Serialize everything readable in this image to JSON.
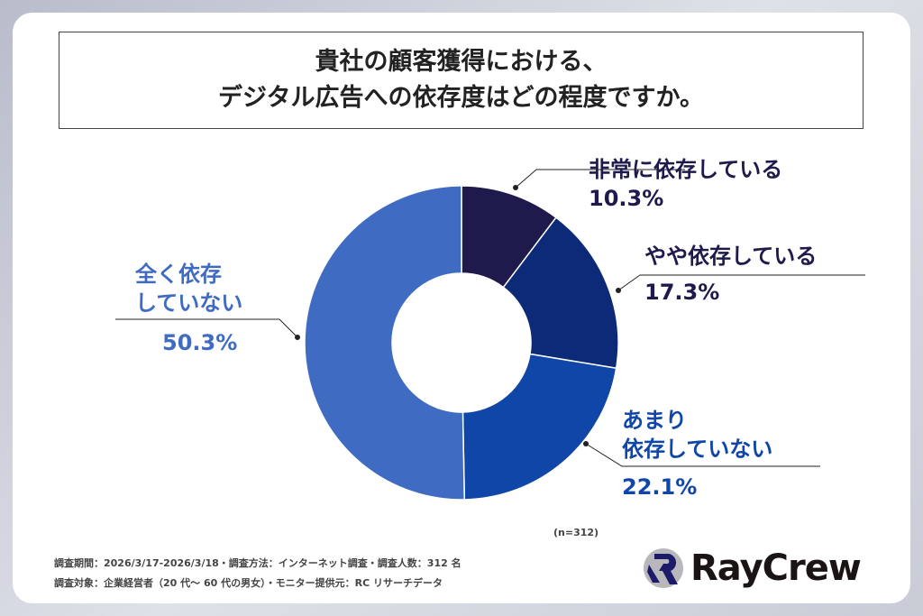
{
  "title": {
    "line1": "貴社の顧客獲得における、",
    "line2": "デジタル広告への依存度はどの程度ですか。"
  },
  "chart_data": {
    "type": "pie",
    "donut": true,
    "categories": [
      "非常に依存している",
      "やや依存している",
      "あまり依存していない",
      "全く依存していない"
    ],
    "values": [
      10.3,
      17.3,
      22.1,
      50.3
    ],
    "value_labels": [
      "10.3%",
      "17.3%",
      "22.1%",
      "50.3%"
    ],
    "colors": [
      "#1e1a4c",
      "#0d2a78",
      "#0f46a8",
      "#3f6cc2"
    ],
    "n": "(n=312)"
  },
  "labels": {
    "a1": "非常に依存している",
    "b1": "やや依存している",
    "c1": "あまり",
    "c2": "依存していない",
    "d1": "全く依存",
    "d2": "していない"
  },
  "footer": {
    "line1": "調査期間：2026/3/17-2026/3/18・調査方法：インターネット調査・調査人数：312 名",
    "line2": "調査対象：企業経営者（20 代～ 60 代の男女）・モニター提供元：RC リサーチデータ"
  },
  "logo": {
    "text": "RayCrew"
  }
}
